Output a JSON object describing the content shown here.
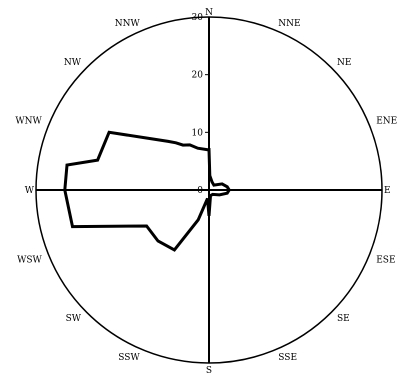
{
  "chart_data": {
    "type": "polar-line",
    "title": "",
    "directions": [
      "N",
      "NNE",
      "NE",
      "ENE",
      "E",
      "ESE",
      "SE",
      "SSE",
      "S",
      "SSW",
      "SW",
      "WSW",
      "W",
      "WNW",
      "NW",
      "NNW"
    ],
    "radial_ticks": [
      {
        "value": 0,
        "label": "0"
      },
      {
        "value": 10,
        "label": "10"
      },
      {
        "value": 20,
        "label": "20"
      },
      {
        "value": 30,
        "label": "30"
      }
    ],
    "rmax": 30,
    "series": [
      {
        "points": [
          {
            "angle": 0,
            "r": 7
          },
          {
            "angle": 3,
            "r": 2.5
          },
          {
            "angle": 20,
            "r": 1.5
          },
          {
            "angle": 45,
            "r": 1.2
          },
          {
            "angle": 65,
            "r": 2.5
          },
          {
            "angle": 80,
            "r": 3.2
          },
          {
            "angle": 90,
            "r": 3.5
          },
          {
            "angle": 100,
            "r": 3.2
          },
          {
            "angle": 115,
            "r": 2
          },
          {
            "angle": 140,
            "r": 1
          },
          {
            "angle": 165,
            "r": 1
          },
          {
            "angle": 180,
            "r": 4.5
          },
          {
            "angle": 190,
            "r": 1.5
          },
          {
            "angle": 200,
            "r": 5.5
          },
          {
            "angle": 210,
            "r": 12
          },
          {
            "angle": 225,
            "r": 12.5
          },
          {
            "angle": 240,
            "r": 12.5
          },
          {
            "angle": 255,
            "r": 24.5
          },
          {
            "angle": 270,
            "r": 25
          },
          {
            "angle": 280,
            "r": 25
          },
          {
            "angle": 285,
            "r": 20
          },
          {
            "angle": 300,
            "r": 20
          },
          {
            "angle": 310,
            "r": 14
          },
          {
            "angle": 320,
            "r": 11
          },
          {
            "angle": 325,
            "r": 10
          },
          {
            "angle": 330,
            "r": 9
          },
          {
            "angle": 337,
            "r": 8.5
          },
          {
            "angle": 345,
            "r": 7.5
          },
          {
            "angle": 358,
            "r": 7
          }
        ]
      }
    ]
  }
}
